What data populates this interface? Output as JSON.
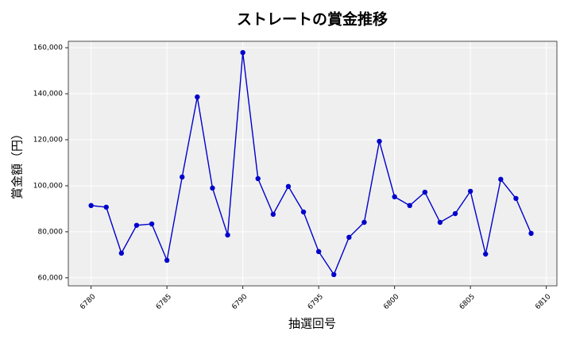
{
  "chart_data": {
    "type": "line",
    "title": "ストレートの賞金推移",
    "x_label": "抽選回号",
    "y_label": "賞金額（円）",
    "x": [
      6780,
      6781,
      6782,
      6783,
      6784,
      6785,
      6786,
      6787,
      6788,
      6789,
      6790,
      6791,
      6792,
      6793,
      6794,
      6795,
      6796,
      6797,
      6798,
      6799,
      6800,
      6801,
      6802,
      6803,
      6804,
      6805,
      6806,
      6807,
      6808,
      6809
    ],
    "series": [
      {
        "color": "#0000cc",
        "values": [
          91400,
          90700,
          70700,
          82800,
          83400,
          67600,
          103800,
          138600,
          99000,
          78600,
          157900,
          103100,
          87600,
          99700,
          88600,
          71400,
          61400,
          77600,
          84100,
          119300,
          95200,
          91400,
          97200,
          84100,
          87900,
          97600,
          70300,
          102800,
          94500,
          79300
        ]
      }
    ],
    "xlim": [
      6778.5,
      6810.7
    ],
    "ylim": [
      56500,
      162800
    ],
    "xticks": [
      6780,
      6785,
      6790,
      6795,
      6800,
      6805,
      6810
    ],
    "yticks": [
      {
        "value": 60000,
        "label": "60,000"
      },
      {
        "value": 80000,
        "label": "80,000"
      },
      {
        "value": 100000,
        "label": "100,000"
      },
      {
        "value": 120000,
        "label": "120,000"
      },
      {
        "value": 140000,
        "label": "140,000"
      },
      {
        "value": 160000,
        "label": "160,000"
      }
    ],
    "grid": true
  }
}
